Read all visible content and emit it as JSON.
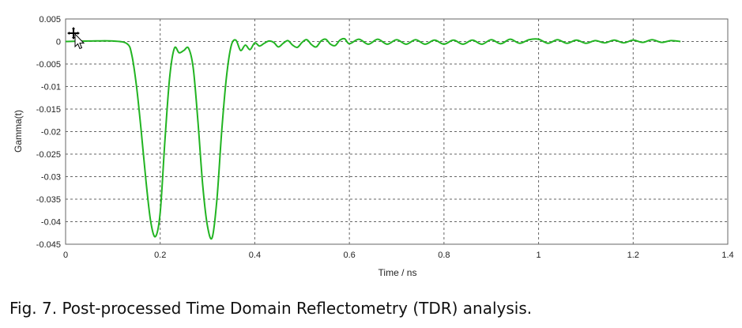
{
  "caption": "Fig. 7. Post-processed Time Domain Reflectometry (TDR) analysis.",
  "chart_data": {
    "type": "line",
    "xlabel": "Time / ns",
    "ylabel": "Gamma(t)",
    "xlim": [
      0,
      1.4
    ],
    "ylim": [
      -0.045,
      0.005
    ],
    "grid": true,
    "x_ticks": [
      0,
      0.2,
      0.4,
      0.6,
      0.8,
      1,
      1.2,
      1.4
    ],
    "x_tick_labels": [
      "0",
      "0.2",
      "0.4",
      "0.6",
      "0.8",
      "1",
      "1.2",
      "1.4"
    ],
    "y_ticks": [
      0.005,
      0,
      -0.005,
      -0.01,
      -0.015,
      -0.02,
      -0.025,
      -0.03,
      -0.035,
      -0.04,
      -0.045
    ],
    "y_tick_labels": [
      "0.005",
      "0",
      "-0.005",
      "-0.01",
      "-0.015",
      "-0.02",
      "-0.025",
      "-0.03",
      "-0.035",
      "-0.04",
      "-0.045"
    ],
    "series": [
      {
        "color": "#22b422",
        "x": [
          0,
          0.05,
          0.1,
          0.13,
          0.14,
          0.15,
          0.16,
          0.17,
          0.18,
          0.19,
          0.2,
          0.21,
          0.22,
          0.23,
          0.24,
          0.25,
          0.26,
          0.27,
          0.28,
          0.29,
          0.3,
          0.31,
          0.32,
          0.33,
          0.34,
          0.35,
          0.36,
          0.37,
          0.38,
          0.39,
          0.4,
          0.41,
          0.42,
          0.43,
          0.44,
          0.45,
          0.46,
          0.47,
          0.48,
          0.49,
          0.5,
          0.51,
          0.52,
          0.53,
          0.54,
          0.55,
          0.56,
          0.57,
          0.58,
          0.59,
          0.6,
          0.62,
          0.64,
          0.66,
          0.68,
          0.7,
          0.72,
          0.74,
          0.76,
          0.78,
          0.8,
          0.82,
          0.84,
          0.86,
          0.88,
          0.9,
          0.92,
          0.94,
          0.96,
          0.98,
          1,
          1.02,
          1.04,
          1.06,
          1.08,
          1.1,
          1.12,
          1.14,
          1.16,
          1.18,
          1.2,
          1.22,
          1.24,
          1.26,
          1.28,
          1.3
        ],
        "y": [
          0,
          0.0001,
          0.0001,
          -0.0005,
          -0.003,
          -0.01,
          -0.02,
          -0.031,
          -0.04,
          -0.0433,
          -0.038,
          -0.022,
          -0.008,
          -0.0015,
          -0.0025,
          -0.002,
          -0.0015,
          -0.006,
          -0.018,
          -0.032,
          -0.041,
          -0.0435,
          -0.035,
          -0.02,
          -0.008,
          -0.001,
          0.0003,
          -0.002,
          -0.0008,
          -0.0018,
          -0.0003,
          -0.001,
          -0.0004,
          0.0001,
          -0.0002,
          -0.0012,
          -0.0004,
          0.0002,
          -0.0008,
          -0.0013,
          -0.0002,
          0.0004,
          -0.0007,
          -0.0012,
          0.0001,
          0.0005,
          -0.0006,
          -0.0009,
          0.0003,
          0.0006,
          -0.0005,
          0.0005,
          -0.0006,
          0.0005,
          -0.0006,
          0.0004,
          -0.0006,
          0.0004,
          -0.0006,
          0.0003,
          -0.0006,
          0.0003,
          -0.0006,
          0.0003,
          -0.0006,
          0.0004,
          -0.0005,
          0.0005,
          -0.0004,
          0.0004,
          0.0005,
          -0.0004,
          0.0004,
          -0.0004,
          0.0003,
          -0.0004,
          0.0002,
          -0.0003,
          0.0003,
          -0.0003,
          0.0003,
          -0.0002,
          0.0004,
          -0.0002,
          0.0002,
          0
        ]
      }
    ]
  }
}
